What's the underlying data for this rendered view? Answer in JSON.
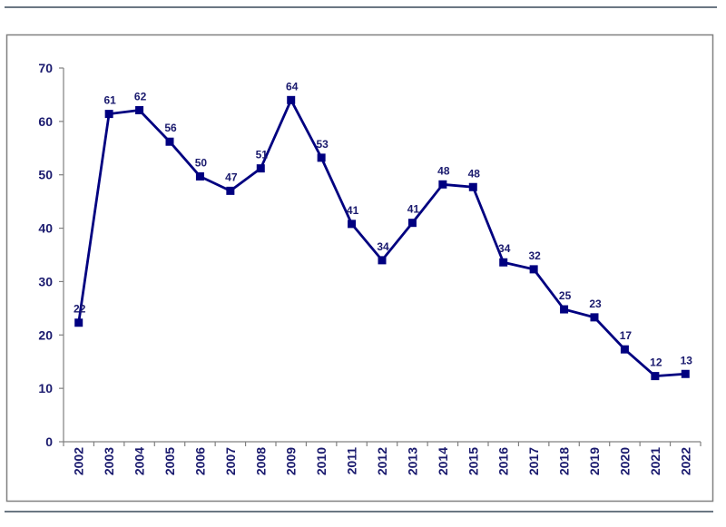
{
  "chart_data": {
    "type": "line",
    "title": "",
    "xlabel": "",
    "ylabel": "",
    "categories": [
      "2002",
      "2003",
      "2004",
      "2005",
      "2006",
      "2007",
      "2008",
      "2009",
      "2010",
      "2011",
      "2012",
      "2013",
      "2014",
      "2015",
      "2016",
      "2017",
      "2018",
      "2019",
      "2020",
      "2021",
      "2022"
    ],
    "series": [
      {
        "name": "",
        "values": [
          22.3,
          61.4,
          62.1,
          56.2,
          49.7,
          47.0,
          51.2,
          64.0,
          53.2,
          40.8,
          34.0,
          41.0,
          48.2,
          47.7,
          33.6,
          32.3,
          24.8,
          23.3,
          17.3,
          12.3,
          12.7
        ],
        "labels": [
          "22",
          "61",
          "62",
          "56",
          "50",
          "47",
          "51",
          "64",
          "53",
          "41",
          "34",
          "41",
          "48",
          "48",
          "34",
          "32",
          "25",
          "23",
          "17",
          "12",
          "13"
        ]
      }
    ],
    "ylim": [
      0,
      70
    ],
    "yticks": [
      "0",
      "10",
      "20",
      "30",
      "40",
      "50",
      "60",
      "70"
    ],
    "grid": false,
    "legend": "none",
    "colors": {
      "line": "#000080",
      "text": "#1a1a6e",
      "frame": "#808080",
      "rule": "#3a4a5a"
    }
  }
}
